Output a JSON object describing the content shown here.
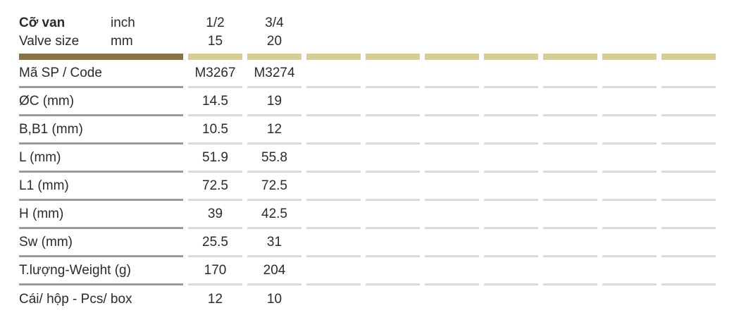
{
  "colors": {
    "header_bar_label": "#877349",
    "header_bar_columns": "#d6ce96",
    "separator_label": "#9a9a9a",
    "separator_columns": "#dadada",
    "text": "#2d2b29",
    "background": "#ffffff"
  },
  "header": {
    "title_vi": "Cỡ van",
    "title_en": "Valve size",
    "unit_row1": "inch",
    "unit_row2": "mm",
    "size_columns": [
      {
        "inch": "1/2",
        "mm": "15"
      },
      {
        "inch": "3/4",
        "mm": "20"
      }
    ],
    "empty_column_count": 7
  },
  "table": {
    "rows": [
      {
        "label": "Mã SP / Code",
        "values": [
          "M3267",
          "M3274"
        ]
      },
      {
        "label": "ØC (mm)",
        "values": [
          "14.5",
          "19"
        ]
      },
      {
        "label": "B,B1 (mm)",
        "values": [
          "10.5",
          "12"
        ]
      },
      {
        "label": "L (mm)",
        "values": [
          "51.9",
          "55.8"
        ]
      },
      {
        "label": "L1 (mm)",
        "values": [
          "72.5",
          "72.5"
        ]
      },
      {
        "label": "H (mm)",
        "values": [
          "39",
          "42.5"
        ]
      },
      {
        "label": "Sw (mm)",
        "values": [
          "25.5",
          "31"
        ]
      },
      {
        "label": "T.lượng-Weight (g)",
        "values": [
          "170",
          "204"
        ]
      },
      {
        "label": "Cái/ hộp - Pcs/ box",
        "values": [
          "12",
          "10"
        ]
      }
    ]
  }
}
